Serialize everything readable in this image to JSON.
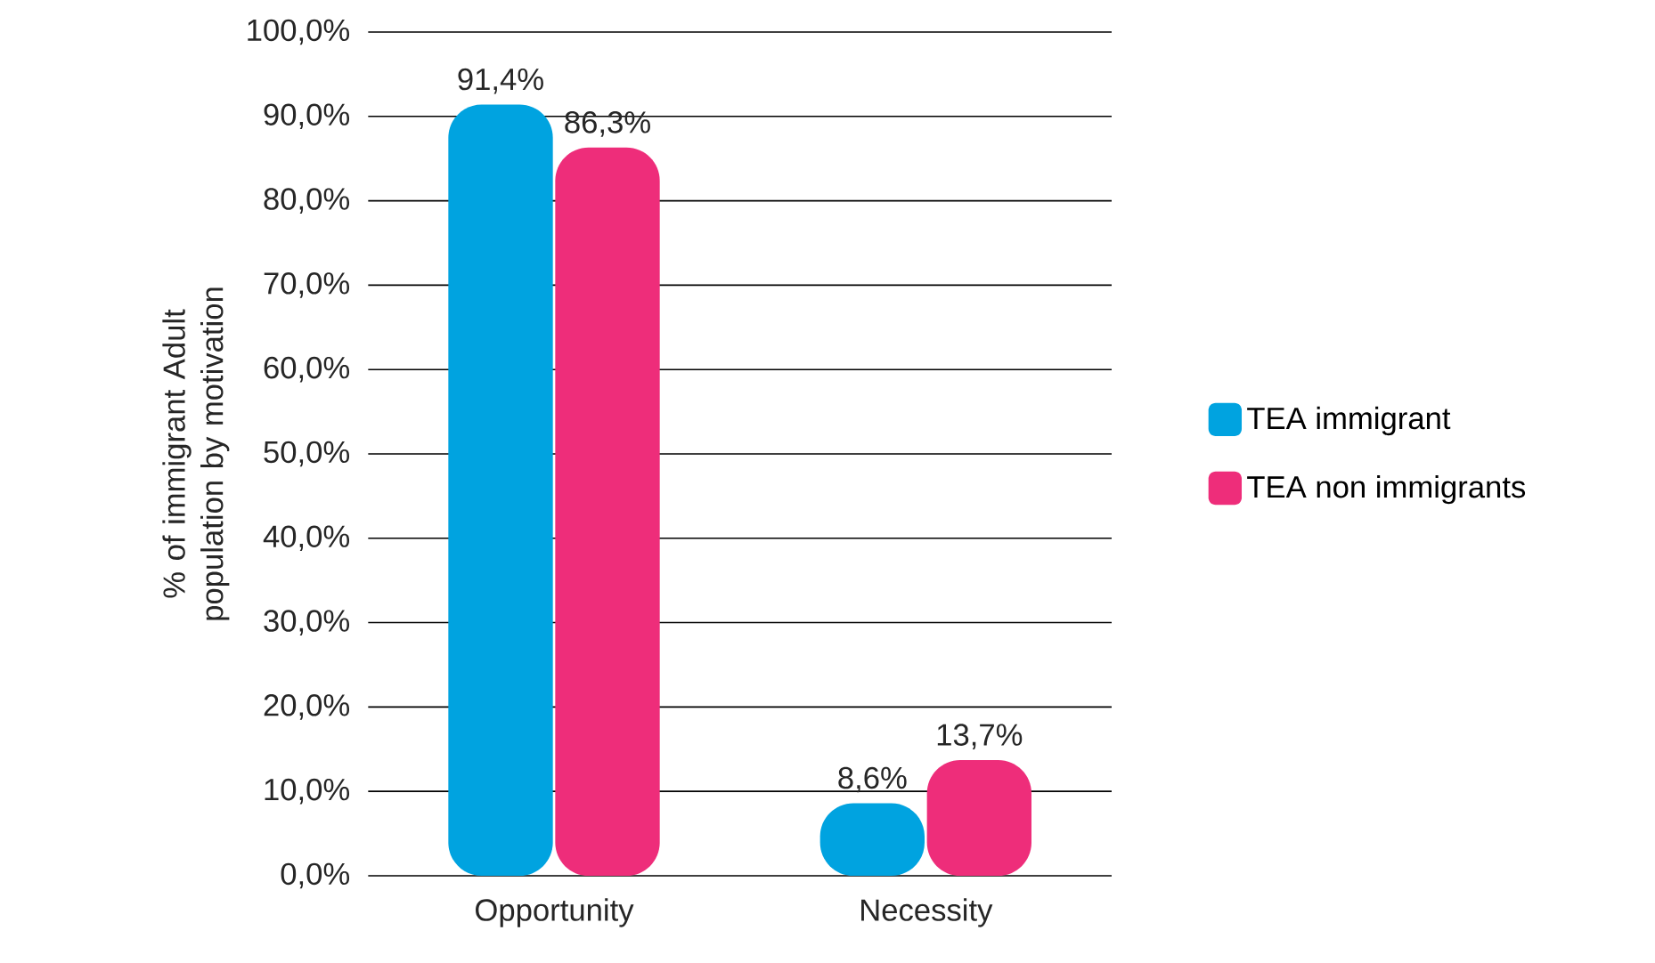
{
  "chart_data": {
    "type": "bar",
    "ylabel": "% of immigrant Adult population by motivation",
    "categories": [
      "Opportunity",
      "Necessity"
    ],
    "series": [
      {
        "name": "TEA immigrant",
        "color": "#00a3e0",
        "values": [
          91.4,
          8.6
        ],
        "value_labels": [
          "91,4%",
          "8,6%"
        ]
      },
      {
        "name": "TEA non immigrants",
        "color": "#ee2d7a",
        "values": [
          86.3,
          13.7
        ],
        "value_labels": [
          "86,3%",
          "13,7%"
        ]
      }
    ],
    "ylim": [
      0,
      100
    ],
    "yticks": [
      {
        "value": 0,
        "label": "0,0%"
      },
      {
        "value": 10,
        "label": "10,0%"
      },
      {
        "value": 20,
        "label": "20,0%"
      },
      {
        "value": 30,
        "label": "30,0%"
      },
      {
        "value": 40,
        "label": "40,0%"
      },
      {
        "value": 50,
        "label": "50,0%"
      },
      {
        "value": 60,
        "label": "60,0%"
      },
      {
        "value": 70,
        "label": "70,0%"
      },
      {
        "value": 80,
        "label": "80,0%"
      },
      {
        "value": 90,
        "label": "90,0%"
      },
      {
        "value": 100,
        "label": "100,0%"
      }
    ],
    "grid": "y",
    "legend": "right"
  }
}
